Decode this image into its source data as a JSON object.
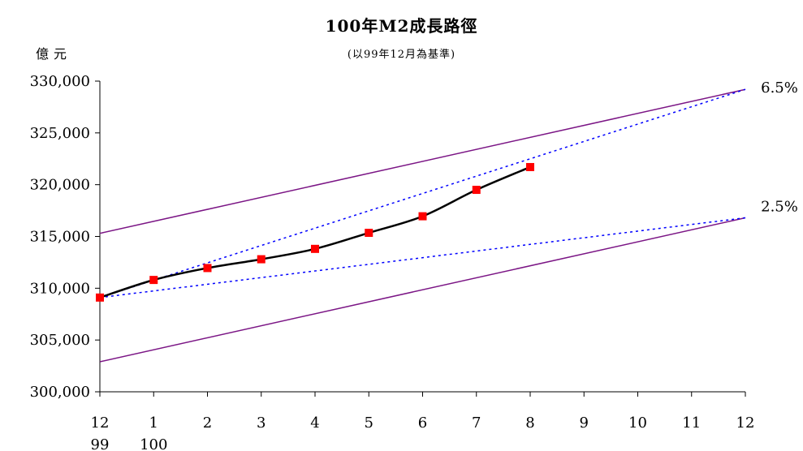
{
  "chart_data": {
    "type": "line",
    "title": "100年M2成長路徑",
    "subtitle": "(以99年12月為基準)",
    "ylabel": "億元",
    "ylim": [
      300000,
      330000
    ],
    "yticks": [
      300000,
      305000,
      310000,
      315000,
      320000,
      325000,
      330000
    ],
    "ytick_labels": [
      "300,000",
      "305,000",
      "310,000",
      "315,000",
      "320,000",
      "325,000",
      "330,000"
    ],
    "x_labels": [
      "12",
      "1",
      "2",
      "3",
      "4",
      "5",
      "6",
      "7",
      "8",
      "9",
      "10",
      "11",
      "12"
    ],
    "x_year_labels": [
      {
        "index": 0,
        "label": "99"
      },
      {
        "index": 1,
        "label": "100"
      }
    ],
    "xlim": [
      0,
      12
    ],
    "grid": false,
    "series": [
      {
        "kind": "actual",
        "x": [
          0,
          1,
          2,
          3,
          4,
          5,
          6,
          7,
          8
        ],
        "values": [
          309100,
          310800,
          311950,
          312800,
          313800,
          315350,
          316950,
          319500,
          321700
        ],
        "color": "#000000",
        "marker_color": "#ff0000"
      },
      {
        "kind": "upper-bound",
        "x": [
          0,
          12
        ],
        "values": [
          315300,
          329200
        ],
        "color": "#7b1585"
      },
      {
        "kind": "lower-bound",
        "x": [
          0,
          12
        ],
        "values": [
          302900,
          316800
        ],
        "color": "#7b1585"
      },
      {
        "kind": "growth-path",
        "name": "6.5%",
        "x": [
          0,
          12
        ],
        "values": [
          309100,
          329200
        ],
        "color": "#0000ff"
      },
      {
        "kind": "growth-path",
        "name": "2.5%",
        "x": [
          0,
          12
        ],
        "values": [
          309100,
          316800
        ],
        "color": "#0000ff"
      }
    ]
  }
}
